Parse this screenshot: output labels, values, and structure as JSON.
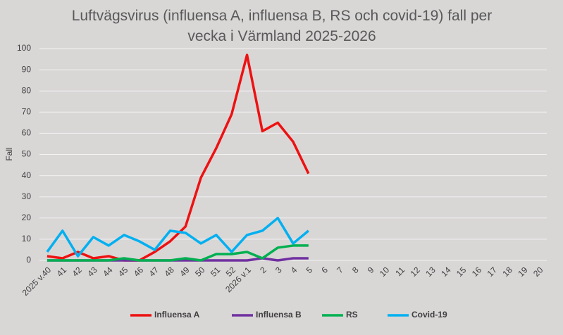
{
  "chart_data": {
    "type": "line",
    "title": "Luftvägsvirus (influensa A, influensa B, RS och covid-19) fall per vecka i Värmland 2025-2026",
    "y_label": "Fall",
    "categories": [
      "2025 v.40",
      "41",
      "42",
      "43",
      "44",
      "45",
      "46",
      "47",
      "48",
      "49",
      "50",
      "51",
      "52",
      "2026 v.1",
      "2",
      "3",
      "4",
      "5",
      "6",
      "7",
      "8",
      "9",
      "10",
      "11",
      "12",
      "13",
      "14",
      "15",
      "16",
      "17",
      "18",
      "19",
      "20"
    ],
    "series": [
      {
        "name": "Influensa A",
        "color": "#ee1111",
        "values": [
          2,
          1,
          4,
          1,
          2,
          0,
          0,
          4,
          9,
          16,
          39,
          53,
          69,
          97,
          61,
          65,
          56,
          41,
          null,
          null,
          null,
          null,
          null,
          null,
          null,
          null,
          null,
          null,
          null,
          null,
          null,
          null,
          null
        ]
      },
      {
        "name": "Influensa B",
        "color": "#7030a0",
        "values": [
          0,
          0,
          0,
          0,
          0,
          0,
          0,
          0,
          0,
          0,
          0,
          0,
          0,
          0,
          1,
          0,
          1,
          1,
          null,
          null,
          null,
          null,
          null,
          null,
          null,
          null,
          null,
          null,
          null,
          null,
          null,
          null,
          null
        ]
      },
      {
        "name": "RS",
        "color": "#00b050",
        "values": [
          0,
          0,
          0,
          0,
          0,
          1,
          0,
          0,
          0,
          1,
          0,
          3,
          3,
          4,
          1,
          6,
          7,
          7,
          null,
          null,
          null,
          null,
          null,
          null,
          null,
          null,
          null,
          null,
          null,
          null,
          null,
          null,
          null
        ]
      },
      {
        "name": "Covid-19",
        "color": "#00b0f0",
        "values": [
          4,
          14,
          2,
          11,
          7,
          12,
          9,
          5,
          14,
          13,
          8,
          12,
          4,
          12,
          14,
          20,
          8,
          14,
          null,
          null,
          null,
          null,
          null,
          null,
          null,
          null,
          null,
          null,
          null,
          null,
          null,
          null,
          null
        ]
      }
    ],
    "ylim": [
      0,
      100
    ],
    "yticks": [
      0,
      10,
      20,
      30,
      40,
      50,
      60,
      70,
      80,
      90,
      100
    ],
    "grid": true,
    "legend": "bottom"
  }
}
